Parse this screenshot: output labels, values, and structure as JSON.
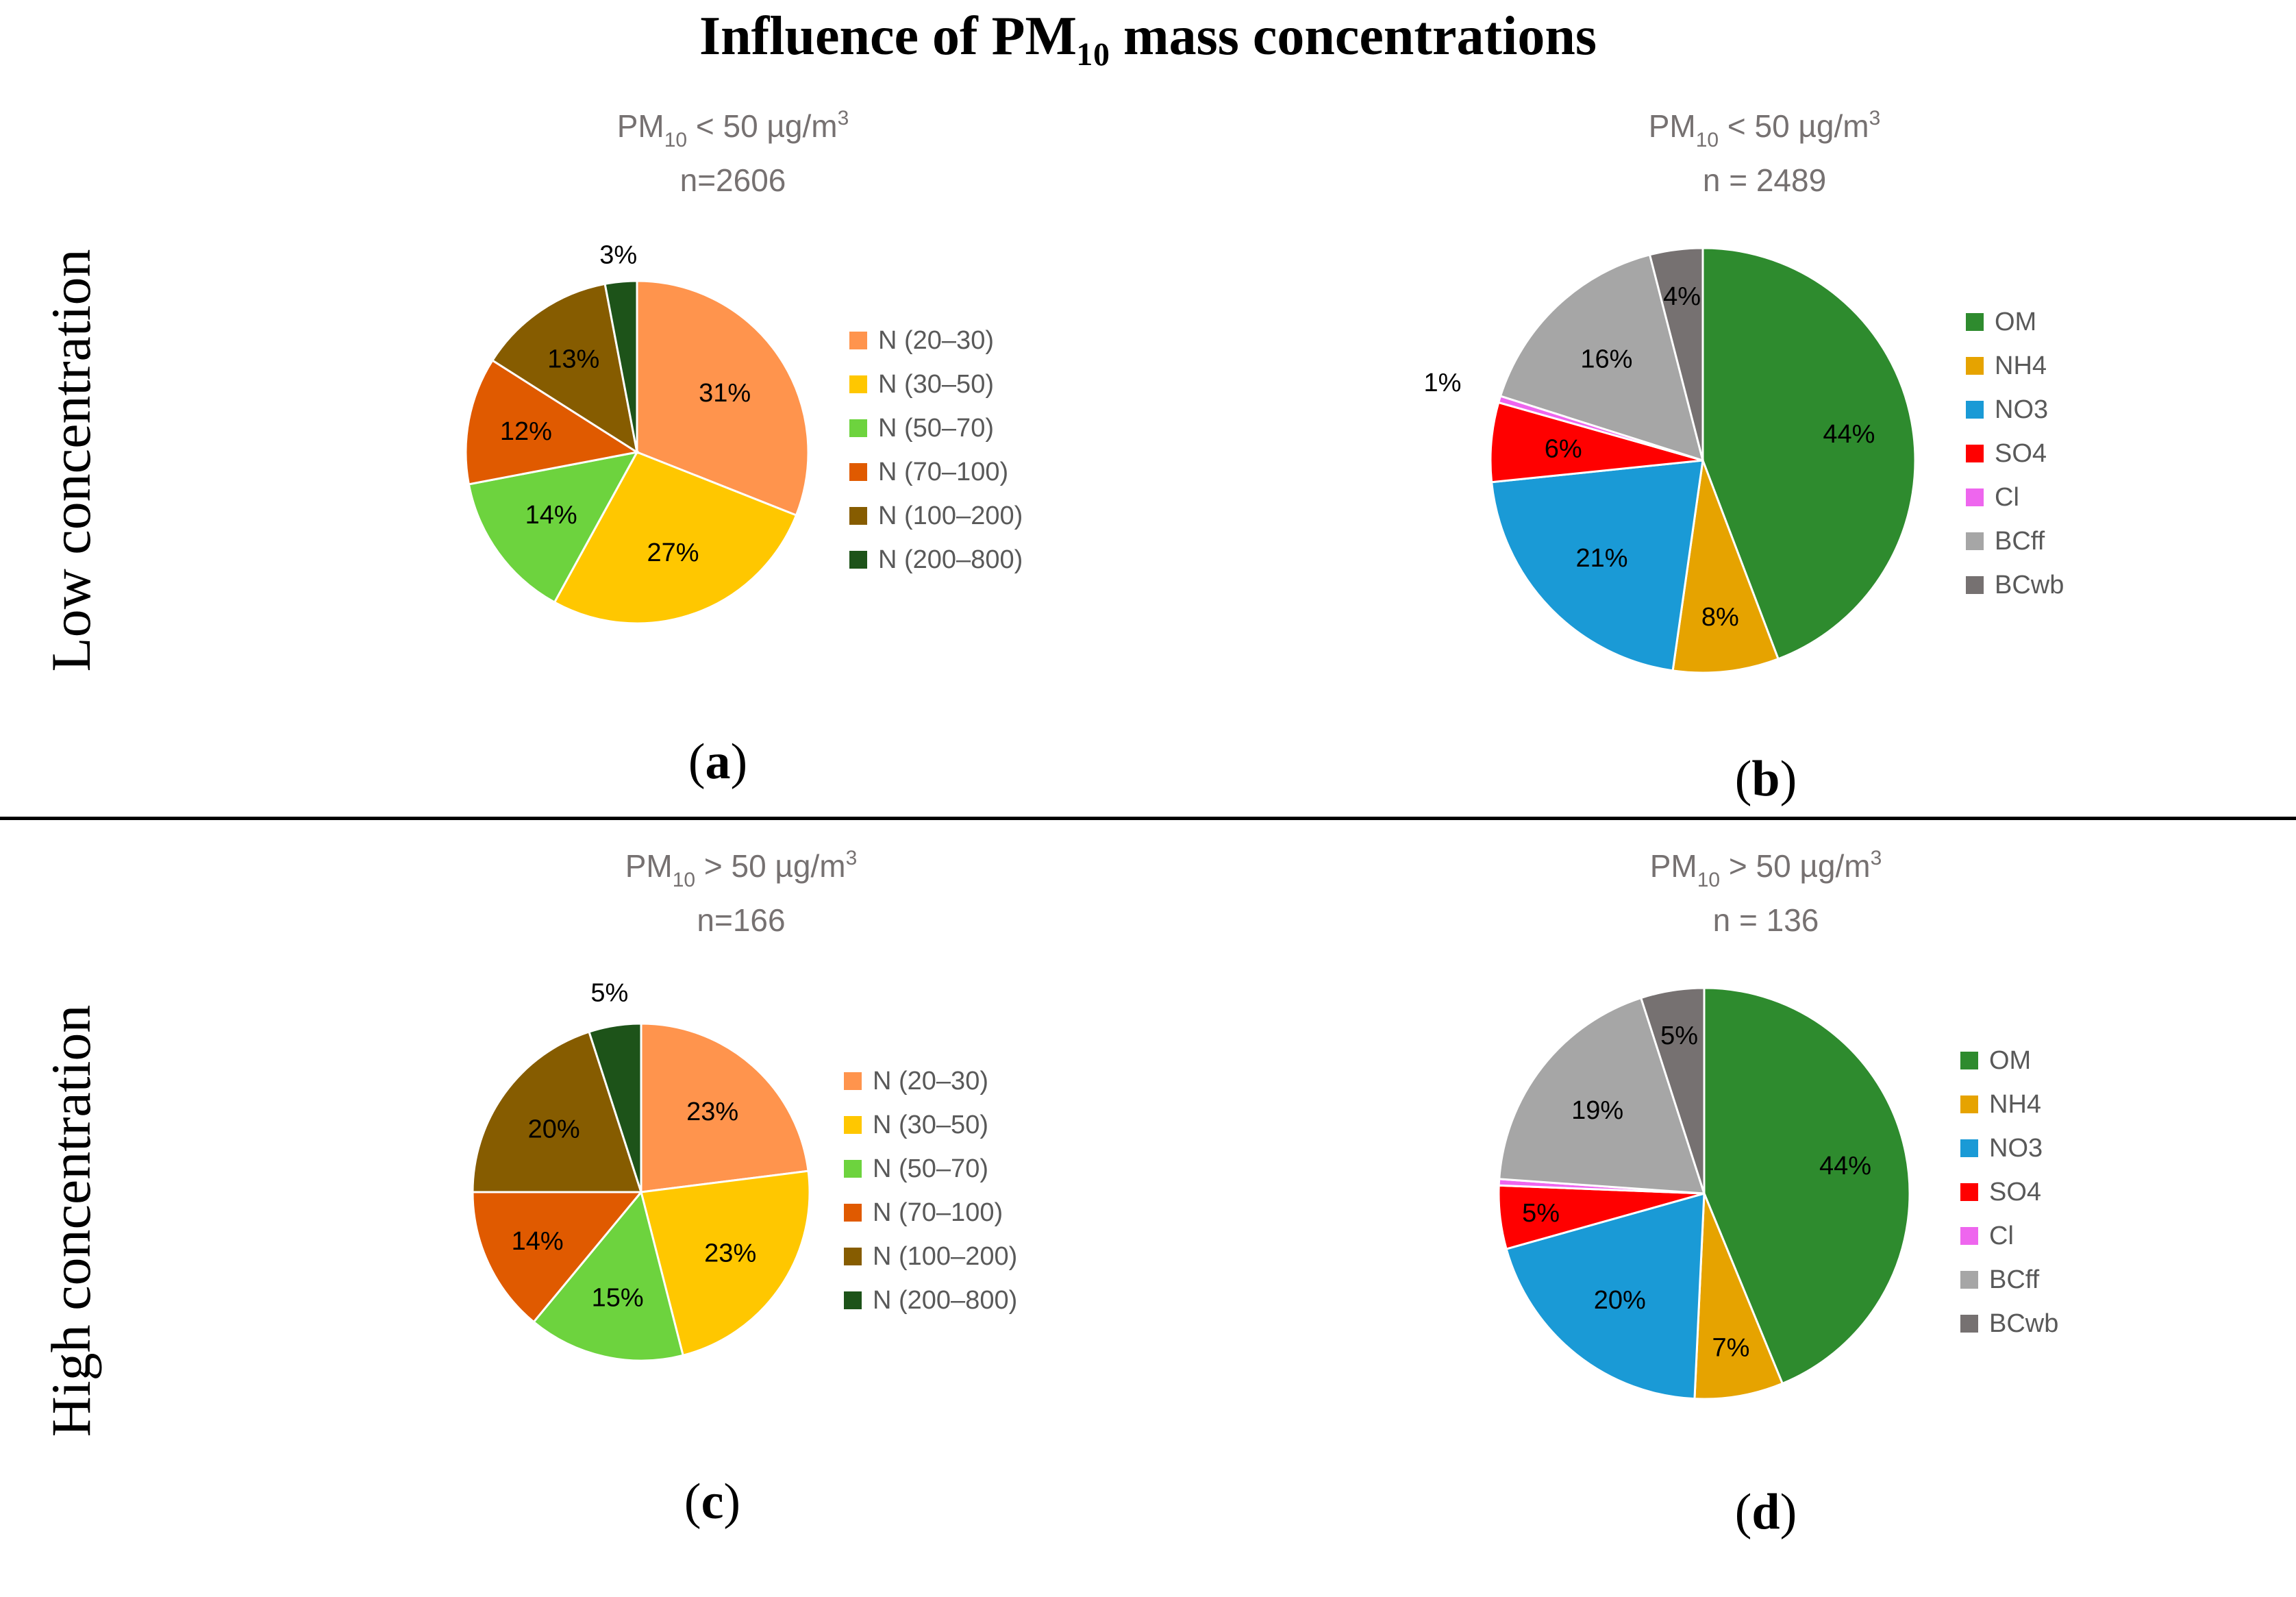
{
  "figure": {
    "title": "Influence of PM₁₀ mass concentrations",
    "row_labels": {
      "low": "Low concentration",
      "high": "High concentration"
    }
  },
  "chart_data": [
    {
      "type": "pie",
      "panel": "(a)",
      "letter": "a",
      "title_prefix": "PM",
      "title_sub": "10",
      "title_rest": " < 50 µg/m",
      "title_sup": "3",
      "n_label": "n=2606",
      "categories": [
        "N (20–30)",
        "N (30–50)",
        "N (50–70)",
        "N (70–100)",
        "N (100–200)",
        "N (200–800)"
      ],
      "values": [
        31,
        27,
        14,
        12,
        13,
        3
      ],
      "labels": [
        "31%",
        "27%",
        "14%",
        "12%",
        "13%",
        "3%"
      ],
      "colors": [
        "#ff944d",
        "#ffc700",
        "#6dd33e",
        "#e05a00",
        "#865c00",
        "#1d5319"
      ],
      "legend_position": "right"
    },
    {
      "type": "pie",
      "panel": "(b)",
      "letter": "b",
      "title_prefix": "PM",
      "title_sub": "10",
      "title_rest": " < 50 µg/m",
      "title_sup": "3",
      "n_label": "n = 2489",
      "categories": [
        "OM",
        "NH4",
        "NO3",
        "SO4",
        "Cl",
        "BCff",
        "BCwb"
      ],
      "values": [
        44,
        8,
        21,
        6,
        0.5,
        16,
        4
      ],
      "labels": [
        "44%",
        "8%",
        "21%",
        "6%",
        "1%",
        "16%",
        "4%"
      ],
      "colors": [
        "#2e8b2e",
        "#e6a300",
        "#1a9ad6",
        "#ff0000",
        "#ee66ee",
        "#a6a6a6",
        "#767171"
      ],
      "legend_position": "right"
    },
    {
      "type": "pie",
      "panel": "(c)",
      "letter": "c",
      "title_prefix": "PM",
      "title_sub": "10",
      "title_rest": " > 50 µg/m",
      "title_sup": "3",
      "n_label": "n=166",
      "categories": [
        "N (20–30)",
        "N (30–50)",
        "N (50–70)",
        "N (70–100)",
        "N (100–200)",
        "N (200–800)"
      ],
      "values": [
        23,
        23,
        15,
        14,
        20,
        5
      ],
      "labels": [
        "23%",
        "23%",
        "15%",
        "14%",
        "20%",
        "5%"
      ],
      "colors": [
        "#ff944d",
        "#ffc700",
        "#6dd33e",
        "#e05a00",
        "#865c00",
        "#1d5319"
      ],
      "legend_position": "right"
    },
    {
      "type": "pie",
      "panel": "(d)",
      "letter": "d",
      "title_prefix": "PM",
      "title_sub": "10",
      "title_rest": " > 50 µg/m",
      "title_sup": "3",
      "n_label": "n = 136",
      "categories": [
        "OM",
        "NH4",
        "NO3",
        "SO4",
        "Cl",
        "BCff",
        "BCwb"
      ],
      "values": [
        44,
        7,
        20,
        5,
        0.5,
        19,
        5
      ],
      "labels": [
        "44%",
        "7%",
        "20%",
        "5%",
        "",
        "19%",
        "5%"
      ],
      "colors": [
        "#2e8b2e",
        "#e6a300",
        "#1a9ad6",
        "#ff0000",
        "#ee66ee",
        "#a6a6a6",
        "#767171"
      ],
      "legend_position": "right"
    }
  ]
}
